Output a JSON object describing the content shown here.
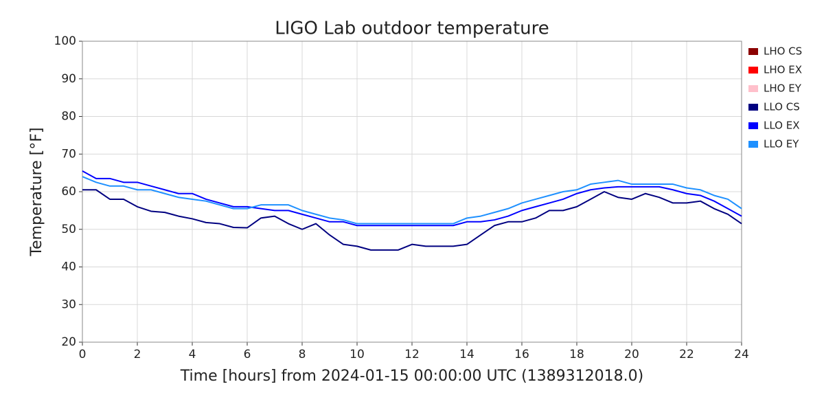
{
  "chart_data": {
    "type": "line",
    "title": "LIGO Lab outdoor temperature",
    "xlabel": "Time [hours] from 2024-01-15 00:00:00 UTC (1389312018.0)",
    "ylabel": "Temperature [°F]",
    "x": [
      0,
      0.5,
      1,
      1.5,
      2,
      2.5,
      3,
      3.5,
      4,
      4.5,
      5,
      5.5,
      6,
      6.5,
      7,
      7.5,
      8,
      8.5,
      9,
      9.5,
      10,
      10.5,
      11,
      11.5,
      12,
      12.5,
      13,
      13.5,
      14,
      14.5,
      15,
      15.5,
      16,
      16.5,
      17,
      17.5,
      18,
      18.5,
      19,
      19.5,
      20,
      20.5,
      21,
      21.5,
      22,
      22.5,
      23,
      23.5,
      24
    ],
    "series": [
      {
        "name": "LHO CS",
        "color": "#8b0000",
        "values": [
          null,
          null,
          null,
          null,
          null,
          null,
          null,
          null,
          null,
          null,
          null,
          null,
          null,
          null,
          null,
          null,
          null,
          null,
          null,
          null,
          null,
          null,
          null,
          null,
          null,
          null,
          null,
          null,
          null,
          null,
          null,
          null,
          null,
          null,
          null,
          null,
          null,
          null,
          null,
          null,
          null,
          null,
          null,
          null,
          null,
          null,
          null,
          null,
          null
        ]
      },
      {
        "name": "LHO EX",
        "color": "#ff0000",
        "values": [
          null,
          null,
          null,
          null,
          null,
          null,
          null,
          null,
          null,
          null,
          null,
          null,
          null,
          null,
          null,
          null,
          null,
          null,
          null,
          null,
          null,
          null,
          null,
          null,
          null,
          null,
          null,
          null,
          null,
          null,
          null,
          null,
          null,
          null,
          null,
          null,
          null,
          null,
          null,
          null,
          null,
          null,
          null,
          null,
          null,
          null,
          null,
          null,
          null
        ]
      },
      {
        "name": "LHO EY",
        "color": "#ffc0cb",
        "values": [
          null,
          null,
          null,
          null,
          null,
          null,
          null,
          null,
          null,
          null,
          null,
          null,
          null,
          null,
          null,
          null,
          null,
          null,
          null,
          null,
          null,
          null,
          null,
          null,
          null,
          null,
          null,
          null,
          null,
          null,
          null,
          null,
          null,
          null,
          null,
          null,
          null,
          null,
          null,
          null,
          null,
          null,
          null,
          null,
          null,
          null,
          null,
          null,
          null
        ]
      },
      {
        "name": "LLO CS",
        "color": "#000080",
        "values": [
          60.5,
          60.5,
          58,
          58,
          56,
          54.8,
          54.5,
          53.5,
          52.8,
          51.8,
          51.5,
          50.5,
          50.4,
          53,
          53.5,
          51.5,
          50,
          51.5,
          48.5,
          46,
          45.5,
          44.5,
          44.5,
          44.5,
          46,
          45.5,
          45.5,
          45.5,
          46,
          48.5,
          51,
          52,
          52,
          53,
          55,
          55,
          56,
          58,
          60,
          58.5,
          58,
          59.5,
          58.5,
          57,
          57,
          57.5,
          55.5,
          54,
          51.5
        ]
      },
      {
        "name": "LLO EX",
        "color": "#0000ff",
        "values": [
          65.5,
          63.5,
          63.5,
          62.5,
          62.5,
          61.5,
          60.5,
          59.5,
          59.5,
          58,
          57,
          56,
          56,
          55.5,
          55,
          55,
          54,
          53,
          52,
          52,
          51,
          51,
          51,
          51,
          51,
          51,
          51,
          51,
          52,
          52,
          52.5,
          53.5,
          55,
          56,
          57,
          58,
          59.5,
          60.5,
          61,
          61.3,
          61.3,
          61.3,
          61.3,
          60.5,
          59.5,
          59,
          57.5,
          55.5,
          53.5
        ]
      },
      {
        "name": "LLO EY",
        "color": "#1e90ff",
        "values": [
          64,
          62.5,
          61.5,
          61.5,
          60.5,
          60.5,
          59.5,
          58.5,
          58,
          57.5,
          56.5,
          55.5,
          55.5,
          56.5,
          56.5,
          56.5,
          55,
          54,
          53,
          52.5,
          51.5,
          51.5,
          51.5,
          51.5,
          51.5,
          51.5,
          51.5,
          51.5,
          53,
          53.5,
          54.5,
          55.5,
          57,
          58,
          59,
          60,
          60.5,
          62,
          62.5,
          63,
          62,
          62,
          62,
          62,
          61,
          60.5,
          59,
          58,
          55.5
        ]
      }
    ],
    "xlim": [
      0,
      24
    ],
    "xticks": [
      0,
      2,
      4,
      6,
      8,
      10,
      12,
      14,
      16,
      18,
      20,
      22,
      24
    ],
    "ylim": [
      20,
      100
    ],
    "yticks": [
      20,
      30,
      40,
      50,
      60,
      70,
      80,
      90,
      100
    ],
    "grid": true,
    "legend": "right"
  }
}
